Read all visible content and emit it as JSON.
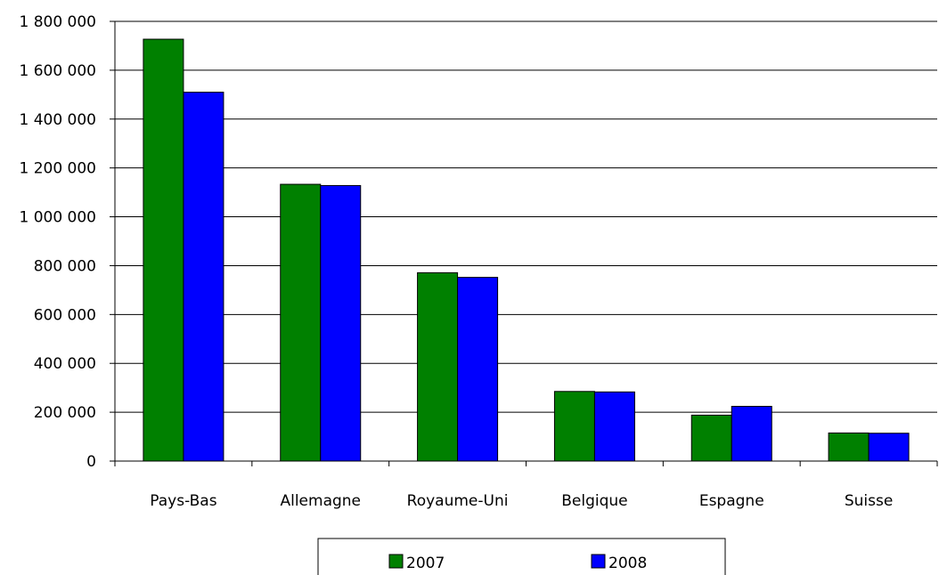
{
  "chart_data": {
    "type": "bar",
    "title": "",
    "xlabel": "",
    "ylabel": "",
    "categories": [
      "Pays-Bas",
      "Allemagne",
      "Royaume-Uni",
      "Belgique",
      "Espagne",
      "Suisse"
    ],
    "series": [
      {
        "name": "2007",
        "values": [
          1727000,
          1133000,
          771000,
          285000,
          188000,
          115000
        ],
        "color": "#008000"
      },
      {
        "name": "2008",
        "values": [
          1510000,
          1128000,
          752000,
          283000,
          224000,
          114000
        ],
        "color": "#0000FF"
      }
    ],
    "ylim": [
      0,
      1800000
    ],
    "yticks": [
      0,
      200000,
      400000,
      600000,
      800000,
      1000000,
      1200000,
      1400000,
      1600000,
      1800000
    ],
    "ytick_labels": [
      "0",
      "200 000",
      "400 000",
      "600 000",
      "800 000",
      "1 000 000",
      "1 200 000",
      "1 400 000",
      "1 600 000",
      "1 800 000"
    ],
    "grid": true,
    "legend_position": "bottom"
  }
}
